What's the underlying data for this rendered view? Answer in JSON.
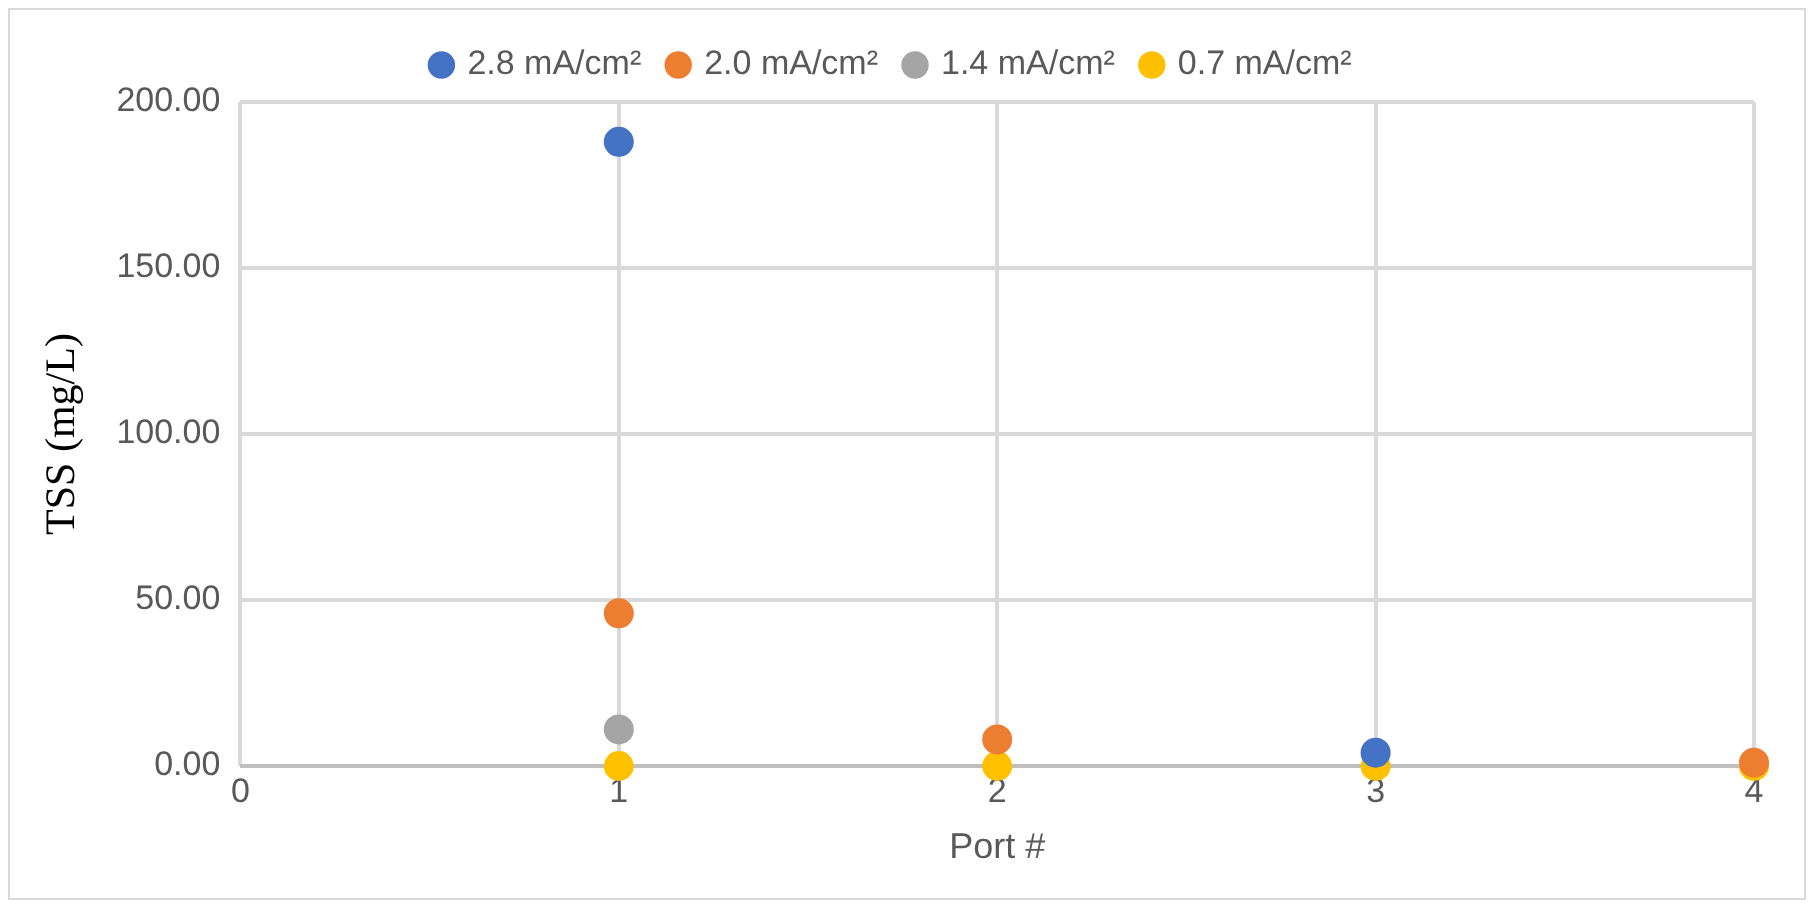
{
  "chart_data": {
    "type": "scatter",
    "xlabel": "Port #",
    "ylabel": "TSS (mg/L)",
    "x": [
      1,
      2,
      3,
      4
    ],
    "series": [
      {
        "name": "2.8 mA/cm²",
        "color": "#4472c4",
        "values": [
          188,
          null,
          4,
          null
        ]
      },
      {
        "name": "2.0 mA/cm²",
        "color": "#ed7d31",
        "values": [
          46,
          8,
          null,
          1
        ]
      },
      {
        "name": "1.4 mA/cm²",
        "color": "#a5a5a5",
        "values": [
          11,
          null,
          null,
          null
        ]
      },
      {
        "name": "0.7 mA/cm²",
        "color": "#ffc000",
        "values": [
          0,
          0,
          0,
          0
        ]
      }
    ],
    "xlim": [
      0,
      4
    ],
    "xticks": [
      0,
      1,
      2,
      3,
      4
    ],
    "ylim": [
      0,
      200
    ],
    "yticks": [
      {
        "value": 0,
        "label": "0.00"
      },
      {
        "value": 50,
        "label": "50.00"
      },
      {
        "value": 100,
        "label": "100.00"
      },
      {
        "value": 150,
        "label": "150.00"
      },
      {
        "value": 200,
        "label": "200.00"
      }
    ],
    "grid": true,
    "legend": "top",
    "marker": "circle"
  }
}
